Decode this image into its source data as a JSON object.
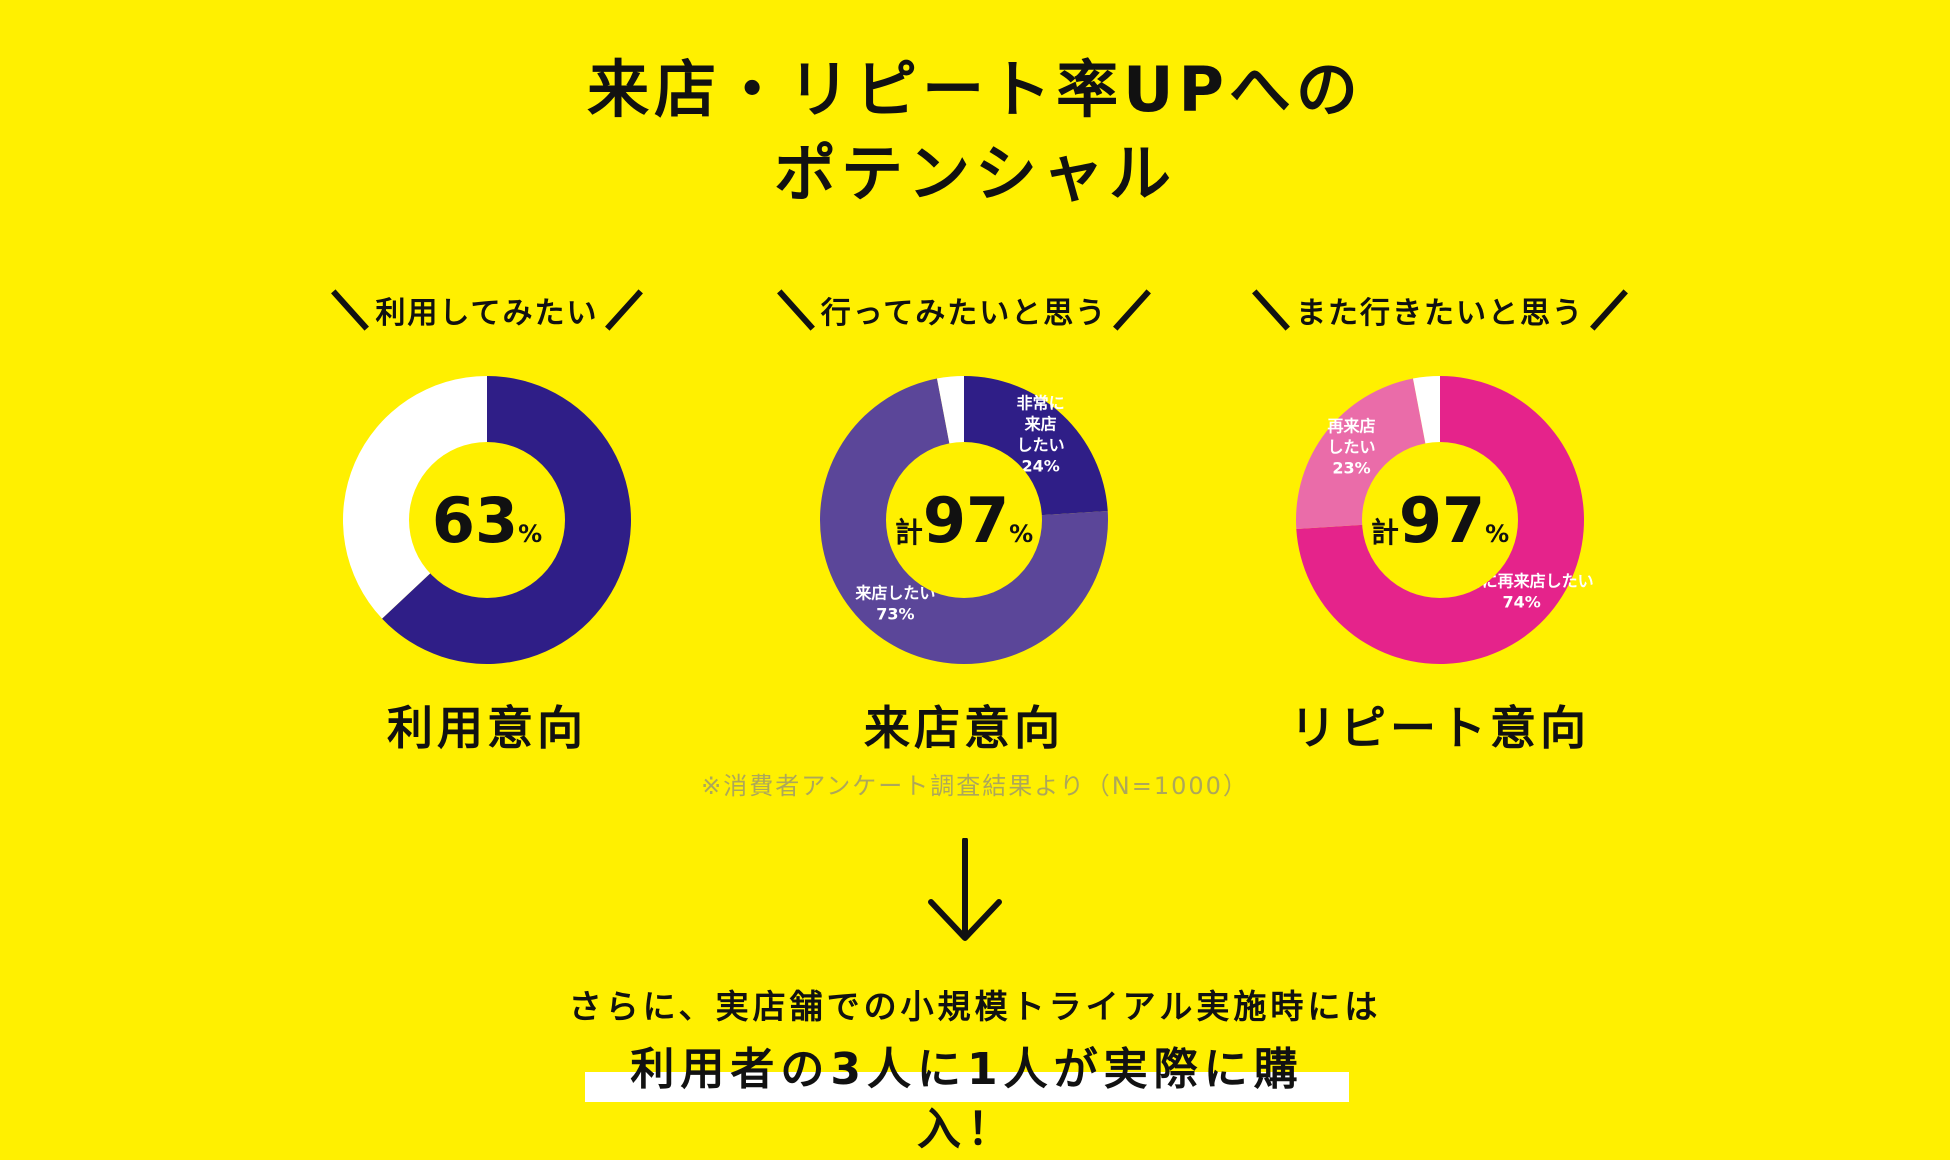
{
  "title": {
    "line1": "来店・リピート率UPへの",
    "line2": "ポテンシャル"
  },
  "note": "※消費者アンケート調査結果より（N=1000）",
  "bottom": {
    "line1": "さらに、実店舗での小規模トライアル実施時には",
    "line2": "利用者の3人に1人が実際に購入！"
  },
  "colors": {
    "background": "#FFF000",
    "navy": "#2F1E87",
    "purple": "#5B4699",
    "pink": "#E5238B",
    "light_pink": "#EA6CA9",
    "white": "#FFFFFF"
  },
  "chart_data": [
    {
      "type": "pie",
      "tagline": "利用してみたい",
      "label": "利用意向",
      "center": {
        "prefix": "",
        "value": "63",
        "unit": "%"
      },
      "slices": [
        {
          "label": "",
          "value": 63,
          "color": "#2F1E87"
        },
        {
          "label": "",
          "value": 37,
          "color": "#FFFFFF"
        }
      ]
    },
    {
      "type": "pie",
      "tagline": "行ってみたいと思う",
      "label": "来店意向",
      "center": {
        "prefix": "計",
        "value": "97",
        "unit": "%"
      },
      "slices": [
        {
          "label": "非常に\n来店\nしたい",
          "value": 24,
          "value_label": "24%",
          "color": "#2F1E87"
        },
        {
          "label": "来店したい",
          "value": 73,
          "value_label": "73%",
          "color": "#5B4699"
        },
        {
          "label": "",
          "value": 3,
          "color": "#FFFFFF"
        }
      ]
    },
    {
      "type": "pie",
      "tagline": "また行きたいと思う",
      "label": "リピート意向",
      "center": {
        "prefix": "計",
        "value": "97",
        "unit": "%"
      },
      "slices": [
        {
          "label": "非常に再来店したい",
          "value": 74,
          "value_label": "74%",
          "color": "#E5238B"
        },
        {
          "label": "再来店\nしたい",
          "value": 23,
          "value_label": "23%",
          "color": "#EA6CA9"
        },
        {
          "label": "",
          "value": 3,
          "color": "#FFFFFF"
        }
      ]
    }
  ]
}
